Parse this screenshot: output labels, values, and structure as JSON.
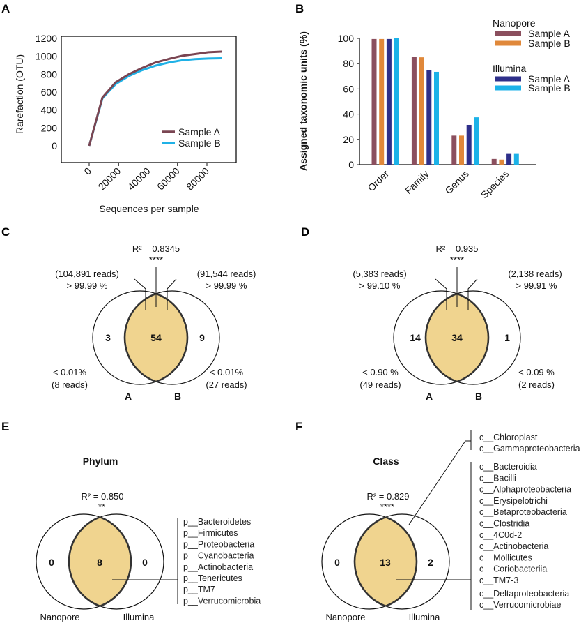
{
  "colors": {
    "sampleA_line": "#7a4552",
    "sampleB_line": "#1fb1e6",
    "nanopore_a": "#8b4f5e",
    "nanopore_b": "#e0883a",
    "illumina_a": "#2e2f8a",
    "illumina_b": "#1cb2e8",
    "overlap_fill": "#f0d48f"
  },
  "panel_labels": [
    "A",
    "B",
    "C",
    "D",
    "E",
    "F"
  ],
  "chart_data": [
    {
      "panel": "A",
      "type": "line",
      "xlabel": "Sequences per sample",
      "ylabel": "Rarefaction (OTU)",
      "xlim": [
        -20000,
        100000
      ],
      "ylim": [
        -200,
        1200
      ],
      "xticks": [
        0,
        20000,
        40000,
        60000,
        80000
      ],
      "yticks": [
        0,
        200,
        400,
        600,
        800,
        1000,
        1200
      ],
      "legend_position": "bottom-right",
      "series": [
        {
          "name": "Sample A",
          "x": [
            0,
            9000,
            18000,
            27000,
            36000,
            45000,
            54000,
            63000,
            72000,
            81000,
            90000
          ],
          "y": [
            0,
            540,
            710,
            800,
            870,
            930,
            970,
            1005,
            1025,
            1045,
            1052
          ]
        },
        {
          "name": "Sample B",
          "x": [
            0,
            9000,
            18000,
            27000,
            36000,
            45000,
            54000,
            63000,
            72000,
            81000,
            90000
          ],
          "y": [
            0,
            530,
            690,
            780,
            845,
            895,
            930,
            955,
            968,
            975,
            978
          ]
        }
      ]
    },
    {
      "panel": "B",
      "type": "bar",
      "ylabel": "Assigned taxonomic units (%)",
      "ylim": [
        0,
        100
      ],
      "yticks": [
        0,
        20,
        40,
        60,
        80,
        100
      ],
      "categories": [
        "Order",
        "Family",
        "Genus",
        "Species"
      ],
      "legend_position": "top-right",
      "legend_groups": [
        "Nanopore",
        "Illumina"
      ],
      "series": [
        {
          "group": "Nanopore",
          "name": "Sample A",
          "values": [
            99.5,
            85.5,
            23,
            4.5
          ]
        },
        {
          "group": "Nanopore",
          "name": "Sample B",
          "values": [
            99.5,
            85,
            23,
            4
          ]
        },
        {
          "group": "Illumina",
          "name": "Sample A",
          "values": [
            99.5,
            75,
            31.5,
            8.5
          ]
        },
        {
          "group": "Illumina",
          "name": "Sample B",
          "values": [
            100,
            73.5,
            37.5,
            8.5
          ]
        }
      ]
    }
  ],
  "venn_reads": [
    {
      "panel": "C",
      "r2": "R² = 0.8345",
      "signif": "****",
      "left_reads": "(104,891 reads)",
      "left_pct": "> 99.99 %",
      "right_reads": "(91,544 reads)",
      "right_pct": "> 99.99 %",
      "only_left": "3",
      "shared": "54",
      "only_right": "9",
      "left_low_pct": "< 0.01%",
      "left_low_reads": "(8 reads)",
      "right_low_pct": "< 0.01%",
      "right_low_reads": "(27 reads)",
      "set_left": "A",
      "set_right": "B"
    },
    {
      "panel": "D",
      "r2": "R² = 0.935",
      "signif": "****",
      "left_reads": "(5,383 reads)",
      "left_pct": "> 99.10 %",
      "right_reads": "(2,138 reads)",
      "right_pct": "> 99.91 %",
      "only_left": "14",
      "shared": "34",
      "only_right": "1",
      "left_low_pct": "< 0.90 %",
      "left_low_reads": "(49 reads)",
      "right_low_pct": "< 0.09 %",
      "right_low_reads": "(2 reads)",
      "set_left": "A",
      "set_right": "B"
    }
  ],
  "venn_taxa": [
    {
      "panel": "E",
      "title": "Phylum",
      "r2": "R² = 0.850",
      "signif": "**",
      "only_left": "0",
      "shared": "8",
      "only_right": "0",
      "set_left": "Nanopore",
      "set_right": "Illumina",
      "shared_list": [
        "p__Bacteroidetes",
        "p__Firmicutes",
        "p__Proteobacteria",
        "p__Cyanobacteria",
        "p__Actinobacteria",
        "p__Tenericutes",
        "p__TM7",
        "p__Verrucomicrobia"
      ],
      "right_only_list": []
    },
    {
      "panel": "F",
      "title": "Class",
      "r2": "R² = 0.829",
      "signif": "****",
      "only_left": "0",
      "shared": "13",
      "only_right": "2",
      "set_left": "Nanopore",
      "set_right": "Illumina",
      "right_only_list": [
        "c__Chloroplast",
        "c__Gammaproteobacteria"
      ],
      "shared_list": [
        "c__Bacteroidia",
        "c__Bacilli",
        "c__Alphaproteobacteria",
        "c__Erysipelotrichi",
        "c__Betaproteobacteria",
        "c__Clostridia",
        "c__4C0d-2",
        "c__Actinobacteria",
        "c__Mollicutes",
        "c__Coriobacteriia",
        "c__TM7-3",
        "c__Deltaproteobacteria",
        "c__Verrucomicrobiae"
      ]
    }
  ]
}
